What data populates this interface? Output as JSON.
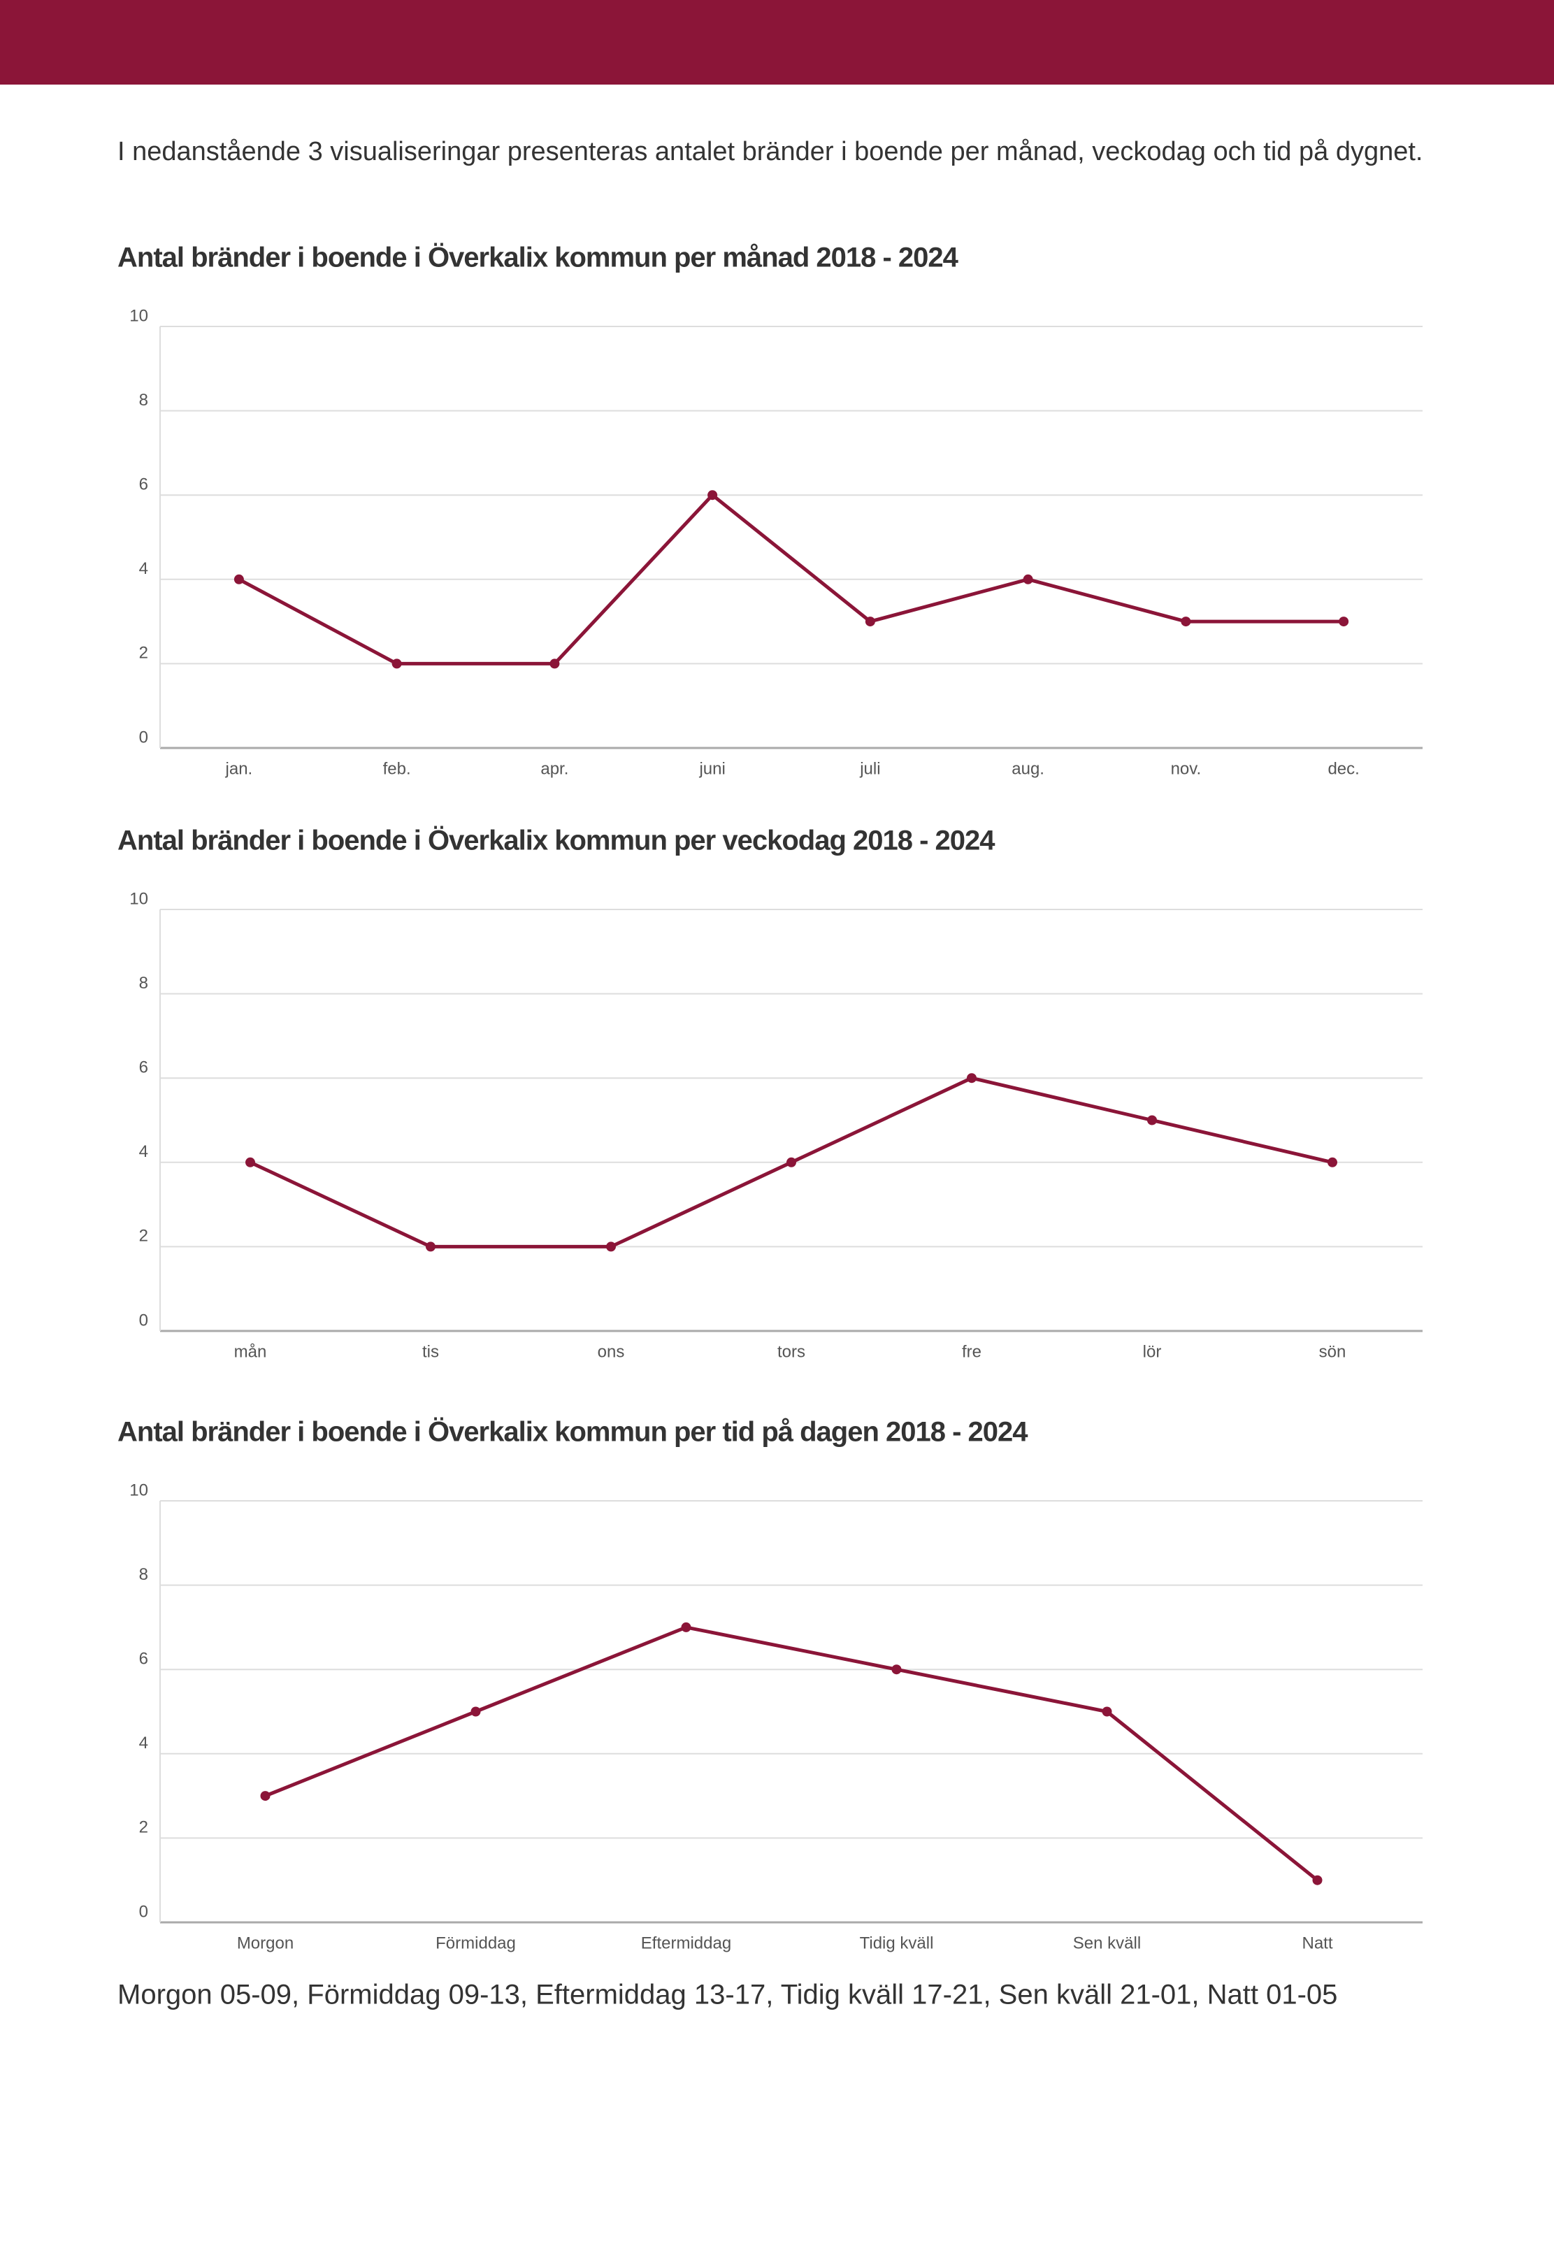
{
  "intro": "I nedanstående 3 visualiseringar presenteras antalet bränder i boende per månad, veckodag och tid på dygnet.",
  "chart_data": [
    {
      "type": "line",
      "title": "Antal bränder i boende i Överkalix kommun per månad 2018 - 2024",
      "categories": [
        "jan.",
        "feb.",
        "apr.",
        "juni",
        "juli",
        "aug.",
        "nov.",
        "dec."
      ],
      "values": [
        4,
        2,
        2,
        6,
        3,
        4,
        3,
        3
      ],
      "color": "#8b1538",
      "ylim": [
        0,
        10
      ],
      "yticks": [
        0,
        2,
        4,
        6,
        8,
        10
      ],
      "grid": true
    },
    {
      "type": "line",
      "title": "Antal bränder i boende i Överkalix kommun per veckodag 2018 - 2024",
      "categories": [
        "mån",
        "tis",
        "ons",
        "tors",
        "fre",
        "lör",
        "sön"
      ],
      "values": [
        4,
        2,
        2,
        4,
        6,
        5,
        4
      ],
      "color": "#8b1538",
      "ylim": [
        0,
        10
      ],
      "yticks": [
        0,
        2,
        4,
        6,
        8,
        10
      ],
      "grid": true
    },
    {
      "type": "line",
      "title": "Antal bränder i boende i Överkalix kommun per tid på dagen 2018 - 2024",
      "categories": [
        "Morgon",
        "Förmiddag",
        "Eftermiddag",
        "Tidig kväll",
        "Sen kväll",
        "Natt"
      ],
      "values": [
        3,
        5,
        7,
        6,
        5,
        1
      ],
      "color": "#8b1538",
      "ylim": [
        0,
        10
      ],
      "yticks": [
        0,
        2,
        4,
        6,
        8,
        10
      ],
      "grid": true
    }
  ],
  "footnote": "Morgon 05-09, Förmiddag 09-13, Eftermiddag 13-17, Tidig kväll 17-21, Sen kväll 21-01, Natt 01-05"
}
